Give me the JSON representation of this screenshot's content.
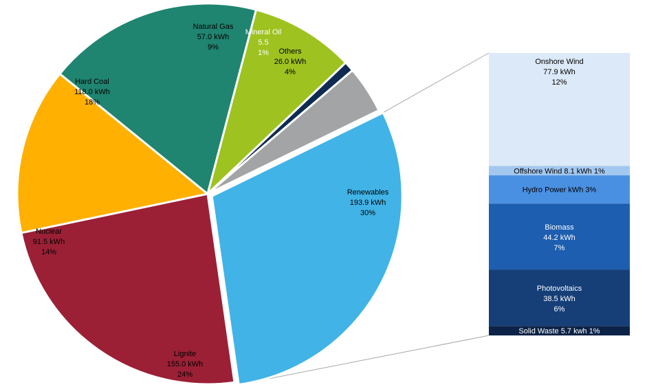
{
  "chart_data": [
    {
      "type": "pie",
      "title": "",
      "slices": [
        {
          "name": "Renewables",
          "value_text": "193.9  kWh",
          "percent_text": "30%",
          "value": 193.9,
          "percent": 30,
          "color": "#41b3e6",
          "label_color": "#000000",
          "exploded": true
        },
        {
          "name": "Lignite",
          "value_text": "155.0  kWh",
          "percent_text": "24%",
          "value": 155.0,
          "percent": 24,
          "color": "#9b2035",
          "label_color": "#000000"
        },
        {
          "name": "Nuclear",
          "value_text": "91.5  kWh",
          "percent_text": "14%",
          "value": 91.5,
          "percent": 14,
          "color": "#ffb000",
          "label_color": "#000000"
        },
        {
          "name": "Hard Coal",
          "value_text": "118.0  kWh",
          "percent_text": "18%",
          "value": 118.0,
          "percent": 18,
          "color": "#1f8470",
          "label_color": "#000000"
        },
        {
          "name": "Natural Gas",
          "value_text": "57.0  kWh",
          "percent_text": "9%",
          "value": 57.0,
          "percent": 9,
          "color": "#9ec21f",
          "label_color": "#000000"
        },
        {
          "name": "Mineral Oil",
          "value_text": "5.5",
          "percent_text": "1%",
          "value": 5.5,
          "percent": 1,
          "color": "#0f2b52",
          "label_color": "#ffffff"
        },
        {
          "name": "Others",
          "value_text": "26.0  kWh",
          "percent_text": "4%",
          "value": 26.0,
          "percent": 4,
          "color": "#a2a4a5",
          "label_color": "#000000"
        }
      ]
    },
    {
      "type": "bar",
      "stacked": true,
      "segments": [
        {
          "name": "Onshore Wind",
          "value_text": "77.9  kWh",
          "percent_text": "12%",
          "value": 77.9,
          "percent": 12,
          "color": "#dce9f8",
          "label_color": "#000000"
        },
        {
          "label": "Offshore Wind 8.1  kWh 1%",
          "value": 8.1,
          "percent": 1,
          "color": "#a3c8f0",
          "label_color": "#000000"
        },
        {
          "label": "Hydro Power kWh 3%",
          "percent": 3,
          "color": "#4a90e2",
          "label_color": "#000000"
        },
        {
          "name": "Biomass",
          "value_text": "44.2  kWh",
          "percent_text": "7%",
          "value": 44.2,
          "percent": 7,
          "color": "#1d5eb0",
          "label_color": "#ffffff"
        },
        {
          "name": "Photovoltaics",
          "value_text": "38.5  kWh",
          "percent_text": "6%",
          "value": 38.5,
          "percent": 6,
          "color": "#163f78",
          "label_color": "#ffffff"
        },
        {
          "label": "Solid Waste 5.7  kwh 1%",
          "value": 5.7,
          "percent": 1,
          "color": "#0c2347",
          "label_color": "#ffffff"
        }
      ]
    }
  ]
}
